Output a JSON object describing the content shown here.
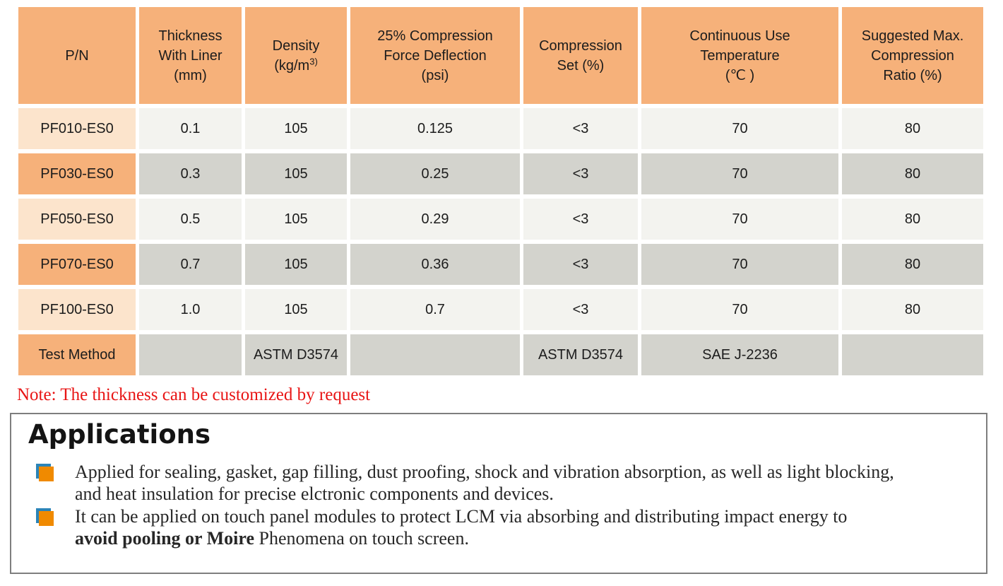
{
  "table": {
    "headers": [
      [
        "P/N"
      ],
      [
        "Thickness",
        "With Liner",
        "(mm)"
      ],
      [
        "Density",
        "(kg/m",
        "3)"
      ],
      [
        "25% Compression",
        "Force Deflection",
        "(psi)"
      ],
      [
        "Compression",
        "Set (%)"
      ],
      [
        "Continuous Use",
        "Temperature",
        "(℃ )"
      ],
      [
        "Suggested Max.",
        "Compression",
        "Ratio (%)"
      ]
    ],
    "rows": [
      {
        "pn": "PF010-ES0",
        "values": [
          "0.1",
          "105",
          "0.125",
          "<3",
          "70",
          "80"
        ]
      },
      {
        "pn": "PF030-ES0",
        "values": [
          "0.3",
          "105",
          "0.25",
          "<3",
          "70",
          "80"
        ]
      },
      {
        "pn": "PF050-ES0",
        "values": [
          "0.5",
          "105",
          "0.29",
          "<3",
          "70",
          "80"
        ]
      },
      {
        "pn": "PF070-ES0",
        "values": [
          "0.7",
          "105",
          "0.36",
          "<3",
          "70",
          "80"
        ]
      },
      {
        "pn": "PF100-ES0",
        "values": [
          "1.0",
          "105",
          "0.7",
          "<3",
          "70",
          "80"
        ]
      }
    ],
    "test_method_row": {
      "label": "Test Method",
      "values": [
        "",
        "ASTM D3574",
        "",
        "ASTM D3574",
        "SAE J-2236",
        ""
      ]
    }
  },
  "note": "Note: The thickness can be customized by request",
  "applications": {
    "title": "Applications",
    "items": [
      {
        "lines": [
          [
            {
              "t": "Applied for sealing, gasket, gap filling, dust proofing, shock and vibration absorption, as well as light blocking,",
              "b": false
            }
          ],
          [
            {
              "t": "and heat insulation for precise elctronic components and devices.",
              "b": false
            }
          ]
        ]
      },
      {
        "lines": [
          [
            {
              "t": "It can be applied on touch panel modules to protect LCM via absorbing and distributing impact energy to",
              "b": false
            }
          ],
          [
            {
              "t": "avoid pooling or Moire",
              "b": true
            },
            {
              "t": " Phenomena on touch screen.",
              "b": false
            }
          ]
        ]
      }
    ]
  },
  "colors": {
    "header_orange": "#F6B17A",
    "pn_peach": "#FCE4CC",
    "cell_light": "#F3F3EF",
    "cell_dark": "#D3D3CD",
    "note_red": "#E81414",
    "bullet_orange": "#F08A00",
    "bullet_blue": "#2B84B8",
    "box_border": "#7E7E7E"
  }
}
